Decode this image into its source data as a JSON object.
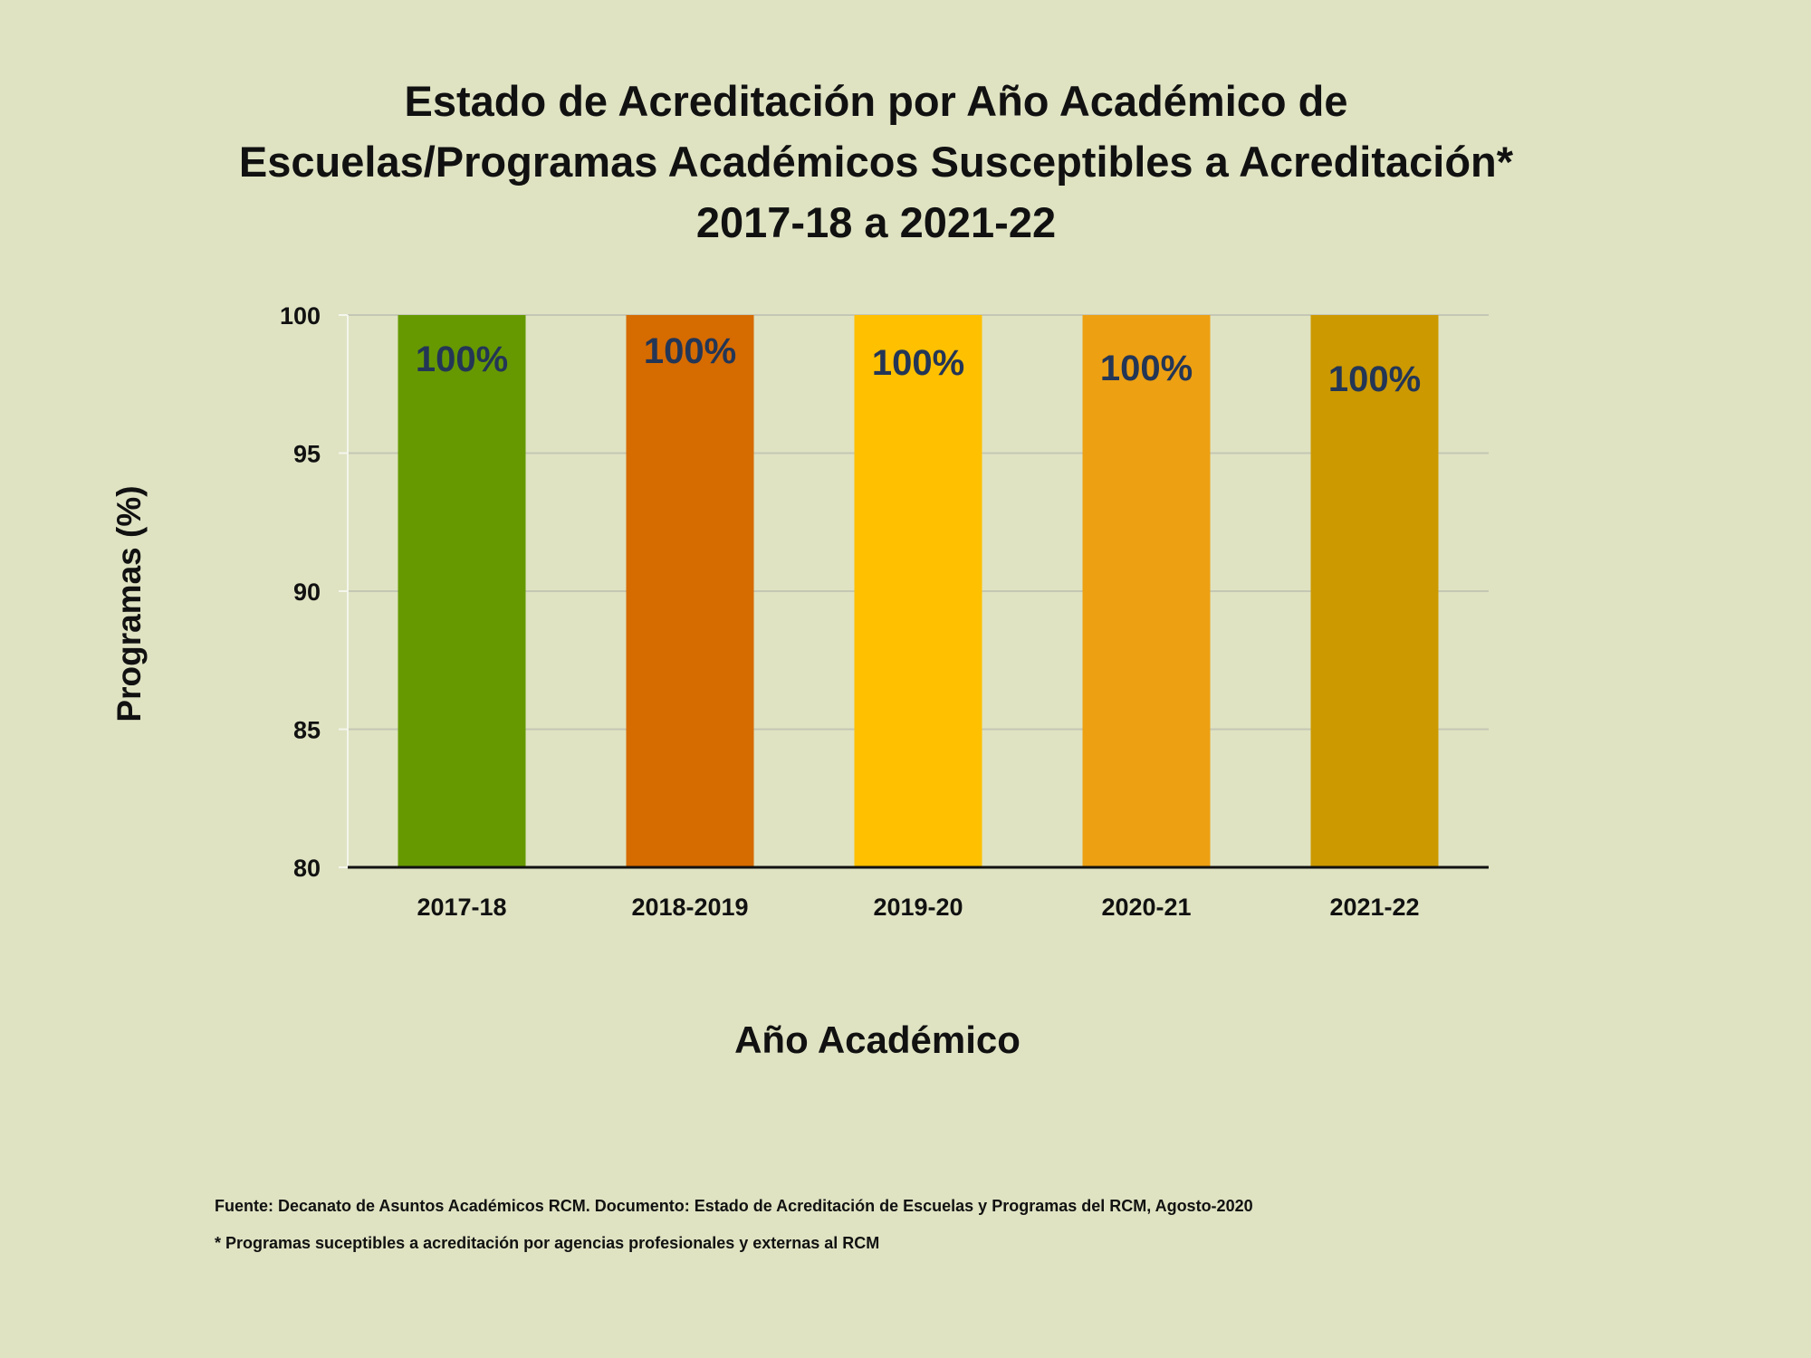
{
  "title_lines": [
    "Estado de Acreditación por Año Académico de",
    "Escuelas/Programas Académicos Susceptibles a Acreditación*",
    "2017-18 a 2021-22"
  ],
  "notes": {
    "source": "Fuente: Decanato de Asuntos Académicos RCM. Documento: Estado de Acreditación de Escuelas y Programas del RCM, Agosto-2020",
    "footnote": "* Programas suceptibles a acreditación por agencias profesionales y externas al RCM"
  },
  "chart_data": {
    "type": "bar",
    "title": "Estado de Acreditación por Año Académico de Escuelas/Programas Académicos Susceptibles a Acreditación* 2017-18 a 2021-22",
    "xlabel": "Año Académico",
    "ylabel": "Programas (%)",
    "categories": [
      "2017-18",
      "2018-2019",
      "2019-20",
      "2020-21",
      "2021-22"
    ],
    "values": [
      100,
      100,
      100,
      100,
      100
    ],
    "data_labels": [
      "100%",
      "100%",
      "100%",
      "100%",
      "100%"
    ],
    "colors": [
      "#669900",
      "#d66b00",
      "#ffc000",
      "#eda012",
      "#cc9900"
    ],
    "label_color": "#243656",
    "ylim": [
      80,
      100
    ],
    "yticks": [
      80,
      85,
      90,
      95,
      100
    ],
    "grid": true,
    "legend": "none"
  }
}
